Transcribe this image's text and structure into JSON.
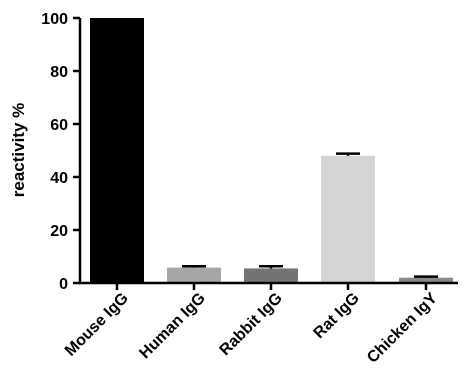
{
  "chart_data": {
    "type": "bar",
    "title": "",
    "xlabel": "",
    "ylabel": "reactivity %",
    "ylim": [
      0,
      100
    ],
    "yticks": [
      0,
      20,
      40,
      60,
      80,
      100
    ],
    "grid": false,
    "categories": [
      "Mouse IgG",
      "Human IgG",
      "Rabbit IgG",
      "Rat IgG",
      "Chicken IgY"
    ],
    "values": [
      100,
      5.8,
      5.5,
      48,
      2
    ],
    "errors": [
      0,
      0.5,
      0.8,
      0.8,
      0.4
    ],
    "colors": [
      "#000000",
      "#a6a6a6",
      "#747474",
      "#d4d4d4",
      "#8a8a8a"
    ]
  }
}
